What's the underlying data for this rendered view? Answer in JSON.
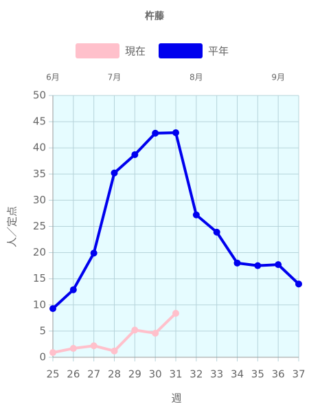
{
  "chart_data": {
    "type": "line",
    "title": "杵藤",
    "categories": [
      "25",
      "26",
      "27",
      "28",
      "29",
      "30",
      "31",
      "32",
      "33",
      "34",
      "35",
      "36",
      "37"
    ],
    "month_labels": [
      "6月",
      null,
      null,
      "7月",
      null,
      null,
      null,
      "8月",
      null,
      null,
      null,
      "9月",
      null
    ],
    "series": [
      {
        "name": "現在",
        "color": "#ffc0cb",
        "values": [
          0.9,
          1.7,
          2.2,
          1.2,
          5.2,
          4.6,
          8.4,
          null,
          null,
          null,
          null,
          null,
          null
        ]
      },
      {
        "name": "平年",
        "color": "#0000ee",
        "values": [
          9.3,
          12.9,
          19.9,
          35.2,
          38.7,
          42.8,
          42.9,
          27.2,
          23.9,
          18.0,
          17.5,
          17.7,
          14.0
        ]
      }
    ],
    "ylim": [
      0,
      50
    ],
    "yticks": [
      0,
      5,
      10,
      15,
      20,
      25,
      30,
      35,
      40,
      45,
      50
    ],
    "ylabel": "人／定点",
    "xlabel": "週",
    "grid": true,
    "legend": "top"
  }
}
